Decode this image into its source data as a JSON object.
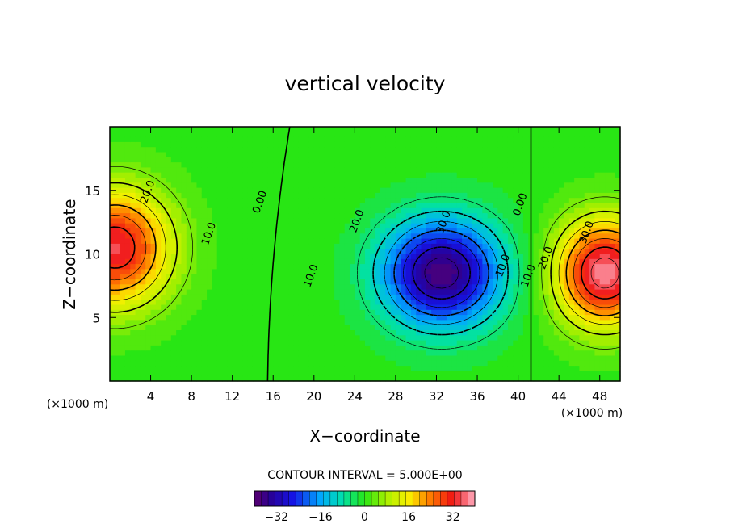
{
  "chart_data": {
    "type": "heatmap",
    "title": "vertical velocity",
    "xlabel": "X−coordinate",
    "ylabel": "Z−coordinate",
    "x_unit_left": "(×1000 m)",
    "x_unit_right": "(×1000 m)",
    "xlim": [
      0,
      50
    ],
    "ylim": [
      0,
      20
    ],
    "x_ticks": [
      "4",
      "8",
      "12",
      "16",
      "20",
      "24",
      "28",
      "32",
      "36",
      "40",
      "44",
      "48"
    ],
    "x_tick_values": [
      4,
      8,
      12,
      16,
      20,
      24,
      28,
      32,
      36,
      40,
      44,
      48
    ],
    "y_ticks": [
      "5",
      "10",
      "15"
    ],
    "y_tick_values": [
      5,
      10,
      15
    ],
    "contour_interval_text": "CONTOUR INTERVAL = 5.000E+00",
    "contour_interval": 5,
    "contour_labels": [
      {
        "text": "20.0",
        "x": 4.0,
        "z": 14.8
      },
      {
        "text": "10.0",
        "x": 10.0,
        "z": 11.5
      },
      {
        "text": "0.00",
        "x": 15.0,
        "z": 14.0
      },
      {
        "text": "20.0",
        "x": 24.5,
        "z": 12.5
      },
      {
        "text": "30.0",
        "x": 33.0,
        "z": 12.4
      },
      {
        "text": "10.0",
        "x": 20.0,
        "z": 8.2
      },
      {
        "text": "10.0",
        "x": 38.8,
        "z": 9.0
      },
      {
        "text": "0.00",
        "x": 40.5,
        "z": 13.8
      },
      {
        "text": "10.0",
        "x": 41.3,
        "z": 8.2
      },
      {
        "text": "20.0",
        "x": 43.0,
        "z": 9.6
      },
      {
        "text": "30.0",
        "x": 47.0,
        "z": 11.6
      }
    ],
    "features": [
      {
        "type": "max",
        "x": 0.5,
        "z": 10.5,
        "value": 34
      },
      {
        "type": "min",
        "x": 32.5,
        "z": 8.5,
        "value": -38
      },
      {
        "type": "max",
        "x": 48.5,
        "z": 8.5,
        "value": 38
      }
    ],
    "colorbar": {
      "range": [
        -40,
        40
      ],
      "tick_labels": [
        "−32",
        "−16",
        "0",
        "16",
        "32"
      ],
      "tick_values": [
        -32,
        -16,
        0,
        16,
        32
      ]
    }
  }
}
